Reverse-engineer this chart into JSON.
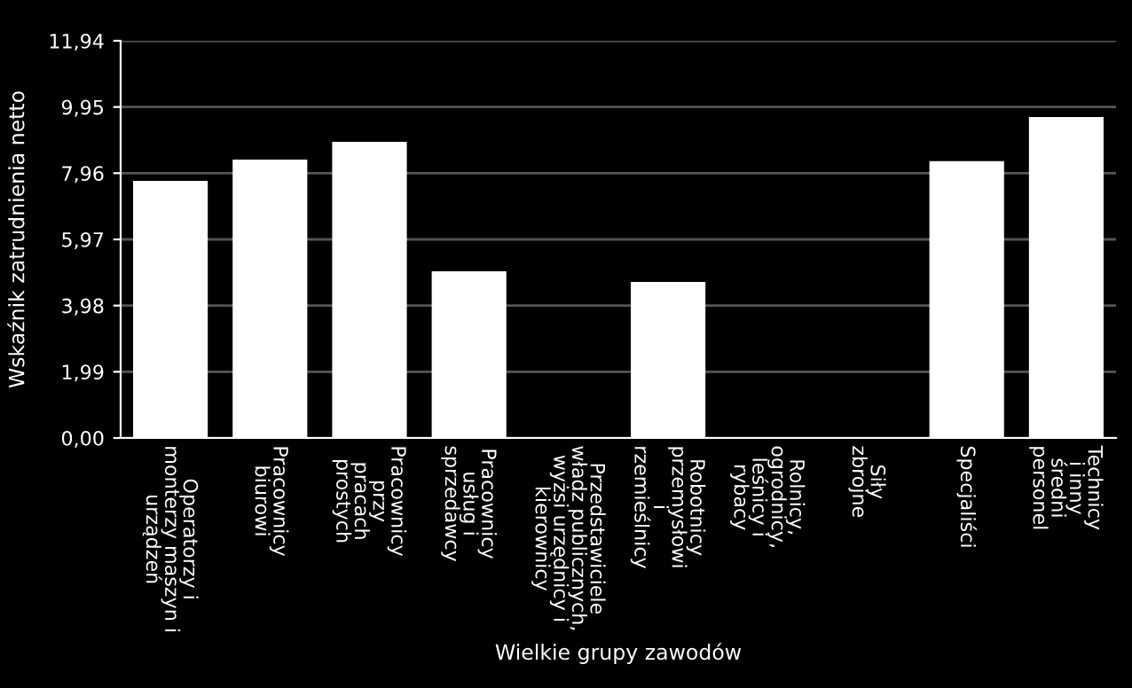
{
  "chart_data": {
    "type": "bar",
    "xlabel": "Wielkie grupy zawodów",
    "ylabel": "Wskaźnik zatrudnienia netto",
    "categories": [
      "Operatorzy i\nmonterzy maszyn i\nurządzeń",
      "Pracownicy\nbiurowi",
      "Pracownicy\nprzy\npracach\nprostych",
      "Pracownicy\nusług i\nsprzedawcy",
      "Przedstawiciele\nwładz publicznych,\nwyżsi urzędnicy i\nkierownicy",
      "Robotnicy\nprzemysłowi\ni\nrzemieślnicy",
      "Rolnicy,\nogrodnicy,\nleśnicy i\nrybacy",
      "Siły\nzbrojne",
      "Specjaliści",
      "Technicy\ni inny\nśredni\npersonel"
    ],
    "values": [
      7.73,
      8.37,
      8.9,
      5.01,
      null,
      4.69,
      null,
      null,
      8.32,
      9.65
    ],
    "color": "#ffffff",
    "ylim": [
      0,
      11.94
    ],
    "yticks": [
      {
        "value": 0,
        "label": "0,00"
      },
      {
        "value": 1.99,
        "label": "1,99"
      },
      {
        "value": 3.98,
        "label": "3,98"
      },
      {
        "value": 5.97,
        "label": "5,97"
      },
      {
        "value": 7.96,
        "label": "7,96"
      },
      {
        "value": 9.95,
        "label": "9,95"
      },
      {
        "value": 11.94,
        "label": "11,94"
      }
    ],
    "grid": "y"
  }
}
